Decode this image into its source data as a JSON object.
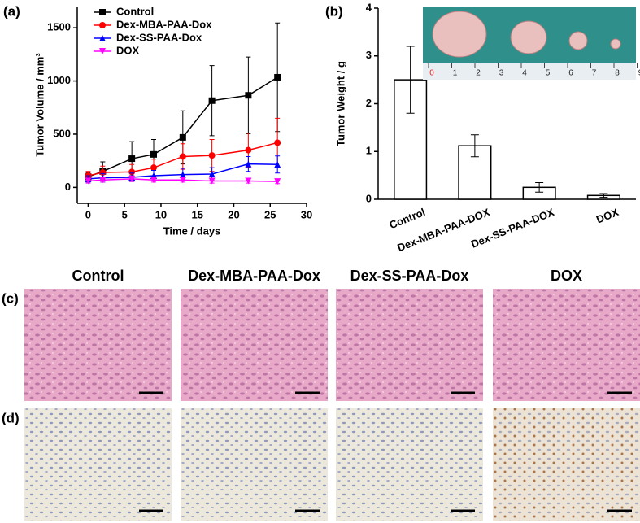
{
  "chart_data": [
    {
      "type": "line",
      "panel_label": "(a)",
      "x_label": "Time / days",
      "y_label": "Tumor Volume / mm³",
      "x": [
        0,
        2,
        6,
        9,
        13,
        17,
        22,
        26
      ],
      "series": [
        {
          "name": "Control",
          "color": "#000000",
          "marker": "square",
          "values": [
            100,
            150,
            270,
            310,
            470,
            815,
            865,
            1035
          ],
          "errors": [
            40,
            90,
            160,
            140,
            250,
            330,
            360,
            510
          ]
        },
        {
          "name": "Dex-MBA-PAA-Dox",
          "color": "#ff0000",
          "marker": "circle",
          "values": [
            110,
            140,
            145,
            185,
            290,
            300,
            350,
            420
          ],
          "errors": [
            40,
            60,
            70,
            80,
            120,
            150,
            160,
            230
          ]
        },
        {
          "name": "Dex-SS-PAA-Dox",
          "color": "#0000ff",
          "marker": "triangle",
          "values": [
            80,
            90,
            95,
            110,
            120,
            125,
            220,
            215
          ],
          "errors": [
            30,
            40,
            40,
            50,
            60,
            60,
            70,
            80
          ]
        },
        {
          "name": "DOX",
          "color": "#ff00ff",
          "marker": "triangle-down",
          "values": [
            60,
            70,
            80,
            70,
            70,
            60,
            60,
            55
          ],
          "errors": [
            20,
            20,
            25,
            20,
            20,
            20,
            20,
            20
          ]
        }
      ],
      "xlim": [
        -1.5,
        30
      ],
      "xticks": [
        0,
        5,
        10,
        15,
        20,
        25,
        30
      ],
      "ylim": [
        -150,
        1700
      ],
      "yticks": [
        0,
        500,
        1000,
        1500
      ],
      "legend": "upper-left"
    },
    {
      "type": "bar",
      "panel_label": "(b)",
      "y_label": "Tumor Weight / g",
      "categories": [
        "Control",
        "Dex-MBA-PAA-DOX",
        "Dex-SS-PAA-DOX",
        "DOX"
      ],
      "values": [
        2.5,
        1.12,
        0.25,
        0.08
      ],
      "errors": [
        0.7,
        0.23,
        0.1,
        0.04
      ],
      "color": "#ffffff",
      "ylim": [
        0,
        4
      ],
      "yticks": [
        0,
        1,
        2,
        3,
        4
      ],
      "ruler_labels": [
        0,
        1,
        2,
        3,
        4,
        5,
        6,
        7,
        8,
        9
      ]
    }
  ],
  "histology": {
    "panel_labels": [
      "(c)",
      "(d)"
    ],
    "columns": [
      "Control",
      "Dex-MBA-PAA-Dox",
      "Dex-SS-PAA-Dox",
      "DOX"
    ]
  }
}
